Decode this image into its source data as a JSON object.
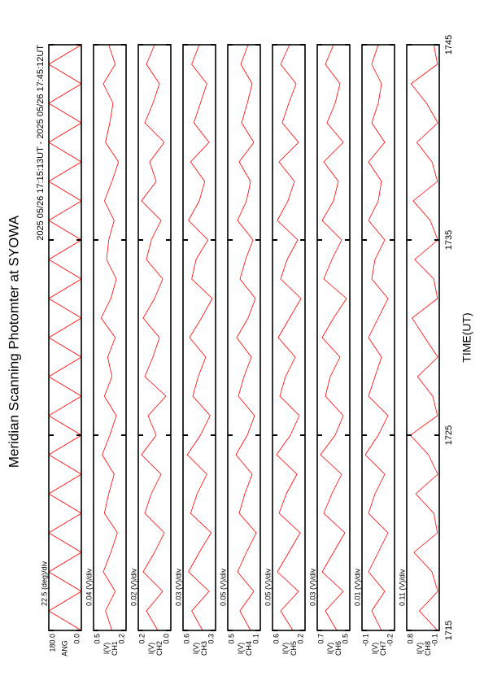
{
  "chart_data": {
    "type": "line",
    "title": "Meridian Scanning Photomter at SYOWA",
    "subtitle": "2025 05/26 17:15:13UT - 2025 05/26 17:45:12UT",
    "xlabel": "TIME(UT)",
    "color": "#ff0000",
    "xlim": [
      0,
      30
    ],
    "xticks": [
      {
        "value": 0,
        "label": "1715"
      },
      {
        "value": 10,
        "label": "1725"
      },
      {
        "value": 20,
        "label": "1735"
      },
      {
        "value": 30,
        "label": "1745"
      }
    ],
    "x": [
      0,
      1,
      2,
      3,
      4,
      5,
      6,
      7,
      8,
      9,
      10,
      11,
      12,
      13,
      14,
      15,
      16,
      17,
      18,
      19,
      20,
      21,
      22,
      23,
      24,
      25,
      26,
      27,
      28,
      29,
      30
    ],
    "panels": [
      {
        "scale": "22.5 (deg)/div",
        "label": "ANG",
        "ylim": [
          0,
          180
        ],
        "yticks": [
          {
            "value": 180,
            "label": "180.0"
          },
          {
            "value": 0,
            "label": "0.0"
          }
        ],
        "values": [
          0,
          180,
          0,
          180,
          0,
          180,
          0,
          180,
          0,
          180,
          0,
          180,
          0,
          180,
          0,
          180,
          0,
          180,
          0,
          180,
          0,
          180,
          0,
          180,
          0,
          180,
          0,
          180,
          0,
          180,
          0
        ]
      },
      {
        "scale": "0.04 (V)/div",
        "unit": "I(V)",
        "label": "CH1",
        "ylim": [
          0.2,
          0.5
        ],
        "yticks": [
          0.5,
          0.2
        ],
        "values": [
          0.33,
          0.39,
          0.3,
          0.41,
          0.34,
          0.28,
          0.4,
          0.36,
          0.31,
          0.42,
          0.35,
          0.29,
          0.4,
          0.33,
          0.37,
          0.3,
          0.43,
          0.34,
          0.29,
          0.38,
          0.36,
          0.31,
          0.4,
          0.33,
          0.27,
          0.39,
          0.35,
          0.32,
          0.41,
          0.3,
          0.36
        ]
      },
      {
        "scale": "0.02 (V)/div",
        "unit": "I(V)",
        "label": "CH2",
        "ylim": [
          0,
          0.2
        ],
        "yticks": [
          0.2,
          {
            "value": 0,
            "label": "0.0"
          }
        ],
        "values": [
          0.08,
          0.15,
          0.05,
          0.17,
          0.1,
          0.04,
          0.16,
          0.12,
          0.06,
          0.18,
          0.09,
          0.14,
          0.03,
          0.16,
          0.11,
          0.07,
          0.17,
          0.1,
          0.05,
          0.15,
          0.12,
          0.06,
          0.18,
          0.09,
          0.13,
          0.04,
          0.16,
          0.11,
          0.07,
          0.15,
          0.1
        ]
      },
      {
        "scale": "0.03 (V)/div",
        "unit": "I(V)",
        "label": "CH3",
        "ylim": [
          0.3,
          0.6
        ],
        "yticks": [
          0.6,
          0.3
        ],
        "values": [
          0.42,
          0.52,
          0.36,
          0.55,
          0.45,
          0.34,
          0.53,
          0.47,
          0.38,
          0.56,
          0.44,
          0.35,
          0.51,
          0.46,
          0.39,
          0.54,
          0.43,
          0.33,
          0.52,
          0.48,
          0.37,
          0.55,
          0.45,
          0.4,
          0.53,
          0.36,
          0.5,
          0.44,
          0.38,
          0.52,
          0.45
        ]
      },
      {
        "scale": "0.05 (V)/div",
        "unit": "I(V)",
        "label": "CH4",
        "ylim": [
          0.1,
          0.5
        ],
        "yticks": [
          0.5,
          0.1
        ],
        "values": [
          0.22,
          0.35,
          0.18,
          0.38,
          0.27,
          0.15,
          0.36,
          0.29,
          0.2,
          0.4,
          0.26,
          0.17,
          0.37,
          0.3,
          0.21,
          0.39,
          0.25,
          0.16,
          0.35,
          0.28,
          0.19,
          0.38,
          0.27,
          0.22,
          0.36,
          0.18,
          0.33,
          0.26,
          0.2,
          0.34,
          0.25
        ]
      },
      {
        "scale": "0.05 (V)/div",
        "unit": "I(V)",
        "label": "CH5",
        "ylim": [
          0.2,
          0.6
        ],
        "yticks": [
          0.6,
          0.2
        ],
        "values": [
          0.35,
          0.5,
          0.28,
          0.54,
          0.4,
          0.26,
          0.52,
          0.43,
          0.3,
          0.55,
          0.38,
          0.27,
          0.51,
          0.44,
          0.32,
          0.53,
          0.39,
          0.25,
          0.5,
          0.42,
          0.29,
          0.54,
          0.41,
          0.33,
          0.52,
          0.28,
          0.48,
          0.4,
          0.31,
          0.5,
          0.39
        ]
      },
      {
        "scale": "0.03 (V)/div",
        "unit": "I(V)",
        "label": "CH6",
        "ylim": [
          0.5,
          0.7
        ],
        "yticks": [
          0.7,
          0.5
        ],
        "values": [
          0.58,
          0.65,
          0.54,
          0.67,
          0.6,
          0.53,
          0.66,
          0.61,
          0.55,
          0.68,
          0.59,
          0.54,
          0.65,
          0.62,
          0.56,
          0.67,
          0.6,
          0.52,
          0.66,
          0.61,
          0.55,
          0.67,
          0.6,
          0.57,
          0.66,
          0.54,
          0.64,
          0.59,
          0.56,
          0.65,
          0.6
        ]
      },
      {
        "scale": "0.01 (V)/div",
        "unit": "I(V)",
        "label": "CH7",
        "ylim": [
          -0.2,
          -0.1
        ],
        "yticks": [
          -0.1,
          -0.2
        ],
        "values": [
          -0.16,
          -0.13,
          -0.17,
          -0.12,
          -0.15,
          -0.18,
          -0.12,
          -0.14,
          -0.17,
          -0.11,
          -0.15,
          -0.18,
          -0.12,
          -0.14,
          -0.16,
          -0.12,
          -0.15,
          -0.18,
          -0.13,
          -0.14,
          -0.17,
          -0.12,
          -0.15,
          -0.16,
          -0.12,
          -0.17,
          -0.13,
          -0.15,
          -0.16,
          -0.13,
          -0.15
        ]
      },
      {
        "scale": "0.11 (V)/div",
        "unit": "I(V)",
        "label": "CH8",
        "ylim": [
          -0.1,
          0.8
        ],
        "yticks": [
          0.8,
          -0.1
        ],
        "values": [
          -0.05,
          0.45,
          -0.06,
          0.1,
          0.6,
          -0.05,
          0.05,
          0.55,
          -0.06,
          0.2,
          0.7,
          -0.05,
          0.08,
          0.5,
          -0.06,
          0.3,
          0.65,
          -0.05,
          0.05,
          0.58,
          -0.06,
          0.15,
          0.62,
          -0.05,
          0.1,
          0.52,
          -0.06,
          0.25,
          0.68,
          -0.05,
          0.05
        ]
      }
    ]
  }
}
